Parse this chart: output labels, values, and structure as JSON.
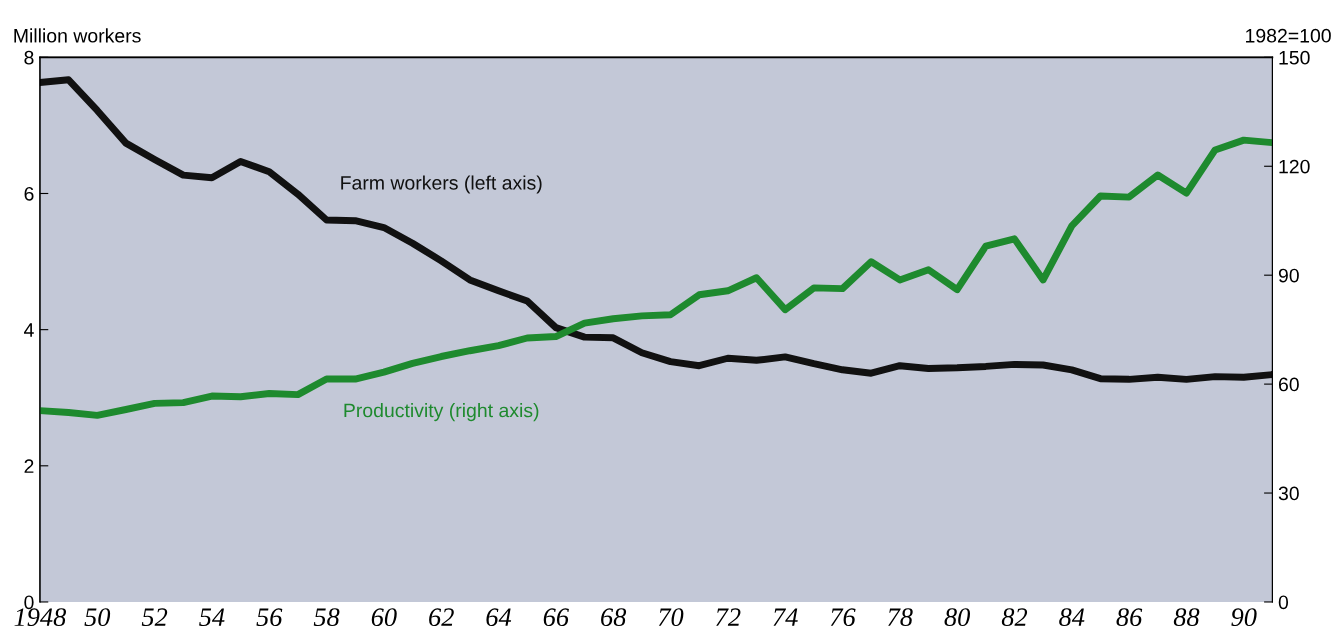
{
  "chart_data": {
    "type": "line",
    "x": [
      1948,
      1949,
      1950,
      1951,
      1952,
      1953,
      1954,
      1955,
      1956,
      1957,
      1958,
      1959,
      1960,
      1961,
      1962,
      1963,
      1964,
      1965,
      1966,
      1967,
      1968,
      1969,
      1970,
      1971,
      1972,
      1973,
      1974,
      1975,
      1976,
      1977,
      1978,
      1979,
      1980,
      1981,
      1982,
      1983,
      1984,
      1985,
      1986,
      1987,
      1988,
      1989,
      1990,
      1991
    ],
    "series": [
      {
        "name": "Farm workers (left axis)",
        "color": "#111111",
        "values": [
          7.63,
          7.67,
          7.22,
          6.74,
          6.5,
          6.27,
          6.23,
          6.47,
          6.32,
          5.99,
          5.61,
          5.6,
          5.5,
          5.27,
          5.01,
          4.73,
          4.57,
          4.42,
          4.03,
          3.89,
          3.88,
          3.66,
          3.53,
          3.47,
          3.58,
          3.55,
          3.6,
          3.5,
          3.41,
          3.36,
          3.47,
          3.43,
          3.44,
          3.46,
          3.49,
          3.48,
          3.41,
          3.28,
          3.27,
          3.3,
          3.27,
          3.31,
          3.3,
          3.34
        ]
      },
      {
        "name": "Productivity (right axis)",
        "color": "#1e8a2e",
        "axis": "y2",
        "values": [
          52.7,
          52.2,
          51.4,
          53,
          54.7,
          54.9,
          56.7,
          56.5,
          57.4,
          57.1,
          61.4,
          61.4,
          63.3,
          65.7,
          67.6,
          69.2,
          70.6,
          72.7,
          73.1,
          76.8,
          78,
          78.8,
          79.1,
          84.6,
          85.7,
          89.3,
          80.5,
          86.5,
          86.3,
          93.7,
          88.7,
          91.5,
          86,
          98,
          100,
          88.7,
          103.6,
          111.8,
          111.5,
          117.6,
          112.6,
          124.5,
          127.2,
          126.5
        ]
      }
    ],
    "ylabel": "Million workers",
    "y2label": "1982=100",
    "xlim": [
      1948,
      1991
    ],
    "xticks": [
      1948,
      {
        "value": 1950,
        "label": "50"
      },
      {
        "value": 1952,
        "label": "52"
      },
      {
        "value": 1954,
        "label": "54"
      },
      {
        "value": 1956,
        "label": "56"
      },
      {
        "value": 1958,
        "label": "58"
      },
      {
        "value": 1960,
        "label": "60"
      },
      {
        "value": 1962,
        "label": "62"
      },
      {
        "value": 1964,
        "label": "64"
      },
      {
        "value": 1966,
        "label": "66"
      },
      {
        "value": 1968,
        "label": "68"
      },
      {
        "value": 1970,
        "label": "70"
      },
      {
        "value": 1972,
        "label": "72"
      },
      {
        "value": 1974,
        "label": "74"
      },
      {
        "value": 1976,
        "label": "76"
      },
      {
        "value": 1978,
        "label": "78"
      },
      {
        "value": 1980,
        "label": "80"
      },
      {
        "value": 1982,
        "label": "82"
      },
      {
        "value": 1984,
        "label": "84"
      },
      {
        "value": 1986,
        "label": "86"
      },
      {
        "value": 1988,
        "label": "88"
      },
      {
        "value": 1990,
        "label": "90"
      }
    ],
    "ylim": [
      0,
      8
    ],
    "yticks": [
      0,
      2,
      4,
      6,
      8
    ],
    "y2lim": [
      0,
      150
    ],
    "y2ticks": [
      0,
      30,
      60,
      90,
      120,
      150
    ],
    "grid": false,
    "legend": false,
    "marker": "none",
    "line_style": "solid"
  }
}
